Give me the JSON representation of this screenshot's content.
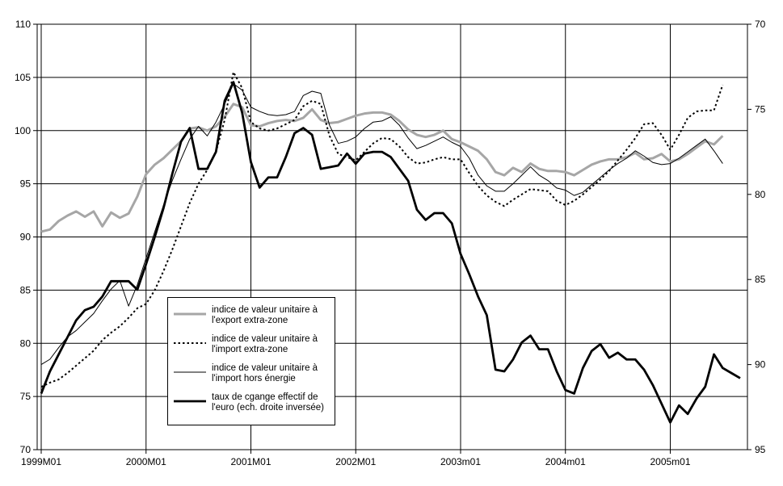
{
  "chart_data": {
    "type": "line",
    "title": "",
    "grid": true,
    "background": "#ffffff",
    "legend_position": "inside-left-bottom",
    "x_tick_labels": [
      "1999M01",
      "2000M01",
      "2001M01",
      "2002M01",
      "2003m01",
      "2004m01",
      "2005m01"
    ],
    "x_tick_indices": [
      0,
      12,
      24,
      36,
      48,
      60,
      72
    ],
    "x_categories": [
      "1999M01",
      "1999M02",
      "1999M03",
      "1999M04",
      "1999M05",
      "1999M06",
      "1999M07",
      "1999M08",
      "1999M09",
      "1999M10",
      "1999M11",
      "1999M12",
      "2000M01",
      "2000M02",
      "2000M03",
      "2000M04",
      "2000M05",
      "2000M06",
      "2000M07",
      "2000M08",
      "2000M09",
      "2000M10",
      "2000M11",
      "2000M12",
      "2001M01",
      "2001M02",
      "2001M03",
      "2001M04",
      "2001M05",
      "2001M06",
      "2001M07",
      "2001M08",
      "2001M09",
      "2001M10",
      "2001M11",
      "2001M12",
      "2002M01",
      "2002M02",
      "2002M03",
      "2002M04",
      "2002M05",
      "2002M06",
      "2002M07",
      "2002M08",
      "2002M09",
      "2002M10",
      "2002M11",
      "2002M12",
      "2003M01",
      "2003M02",
      "2003M03",
      "2003M04",
      "2003M05",
      "2003M06",
      "2003M07",
      "2003M08",
      "2003M09",
      "2003M10",
      "2003M11",
      "2003M12",
      "2004M01",
      "2004M02",
      "2004M03",
      "2004M04",
      "2004M05",
      "2004M06",
      "2004M07",
      "2004M08",
      "2004M09",
      "2004M10",
      "2004M11",
      "2004M12",
      "2005M01",
      "2005M02",
      "2005M03",
      "2005M04",
      "2005M05",
      "2005M06",
      "2005M07",
      "2005M08",
      "2005M09"
    ],
    "left_axis": {
      "min": 70,
      "max": 110,
      "step": 5,
      "ticks": [
        70,
        75,
        80,
        85,
        90,
        95,
        100,
        105,
        110
      ]
    },
    "right_axis": {
      "min": 70,
      "max": 95,
      "step": 5,
      "ticks": [
        70,
        75,
        80,
        85,
        90,
        95
      ],
      "inverted": true
    },
    "colors": {
      "gray_series": "#a6a6a6",
      "black_series": "#000000",
      "gridline": "#000000"
    },
    "series": [
      {
        "name": "indice de valeur unitaire à l'export extra-zone",
        "axis": "left",
        "style": "gray-thick",
        "color": "#a6a6a6",
        "values": [
          90.5,
          90.7,
          91.5,
          92.0,
          92.4,
          91.9,
          92.4,
          91.0,
          92.3,
          91.8,
          92.2,
          93.8,
          95.9,
          96.8,
          97.4,
          98.2,
          99.0,
          100.2,
          100.3,
          100.0,
          100.4,
          101.3,
          102.5,
          102.2,
          100.5,
          100.4,
          100.7,
          100.9,
          101.0,
          100.9,
          101.2,
          102.0,
          101.0,
          100.7,
          100.8,
          101.1,
          101.4,
          101.6,
          101.7,
          101.7,
          101.5,
          100.9,
          100.1,
          99.6,
          99.4,
          99.6,
          100.0,
          99.2,
          98.9,
          98.5,
          98.1,
          97.3,
          96.1,
          95.8,
          96.5,
          96.1,
          96.9,
          96.4,
          96.2,
          96.2,
          96.1,
          95.8,
          96.3,
          96.8,
          97.1,
          97.3,
          97.3,
          97.5,
          97.9,
          97.3,
          97.4,
          97.8,
          97.1,
          97.3,
          97.8,
          98.4,
          99.0,
          98.7,
          99.5,
          null,
          null
        ]
      },
      {
        "name": "indice de valeur unitaire à l'import extra-zone",
        "axis": "left",
        "style": "dotted",
        "color": "#000000",
        "values": [
          75.9,
          76.3,
          76.6,
          77.2,
          77.9,
          78.6,
          79.3,
          80.3,
          81.0,
          81.6,
          82.4,
          83.3,
          83.7,
          85.0,
          86.8,
          88.8,
          91.0,
          93.2,
          95.0,
          96.3,
          98.0,
          101.0,
          105.5,
          104.0,
          100.8,
          100.2,
          100.0,
          100.2,
          100.6,
          101.0,
          102.3,
          102.8,
          102.5,
          99.5,
          97.8,
          97.5,
          97.2,
          98.0,
          98.8,
          99.3,
          99.2,
          98.5,
          97.5,
          96.9,
          97.0,
          97.3,
          97.5,
          97.3,
          97.3,
          96.0,
          94.8,
          93.9,
          93.3,
          92.9,
          93.5,
          94.0,
          94.5,
          94.4,
          94.3,
          93.4,
          93.0,
          93.4,
          94.0,
          94.7,
          95.4,
          96.2,
          97.2,
          98.2,
          99.3,
          100.6,
          100.7,
          99.6,
          98.2,
          99.6,
          101.2,
          101.8,
          101.9,
          101.9,
          104.3,
          null,
          null
        ]
      },
      {
        "name": "indice de valeur unitaire à l'import hors énergie",
        "axis": "left",
        "style": "thin",
        "color": "#000000",
        "values": [
          78.0,
          78.5,
          79.6,
          80.6,
          81.2,
          82.0,
          82.8,
          84.0,
          85.1,
          85.9,
          83.5,
          85.5,
          88.0,
          90.5,
          93.0,
          95.3,
          97.3,
          99.2,
          100.4,
          99.5,
          100.8,
          102.5,
          104.4,
          103.8,
          102.2,
          101.8,
          101.5,
          101.4,
          101.5,
          101.8,
          103.3,
          103.7,
          103.5,
          100.5,
          98.8,
          99.0,
          99.4,
          100.2,
          100.8,
          100.9,
          101.3,
          100.5,
          99.3,
          98.3,
          98.6,
          99.0,
          99.4,
          98.9,
          98.5,
          97.4,
          95.8,
          94.8,
          94.3,
          94.3,
          95.0,
          95.8,
          96.6,
          95.8,
          95.3,
          94.6,
          94.4,
          93.9,
          94.2,
          94.9,
          95.6,
          96.3,
          96.9,
          97.4,
          98.1,
          97.6,
          97.0,
          96.8,
          96.9,
          97.4,
          98.0,
          98.6,
          99.2,
          98.1,
          96.9,
          null,
          null
        ]
      },
      {
        "name": "taux de cgange effectif de l'euro (ech. droite inversée)",
        "axis": "right",
        "style": "thick",
        "color": "#000000",
        "values": [
          91.7,
          90.4,
          89.4,
          88.4,
          87.4,
          86.8,
          86.6,
          86.0,
          85.1,
          85.1,
          85.1,
          85.6,
          84.1,
          82.5,
          80.8,
          78.8,
          76.9,
          76.1,
          78.5,
          78.5,
          77.5,
          74.5,
          73.4,
          75.2,
          78.1,
          79.6,
          79.0,
          79.0,
          77.8,
          76.4,
          76.1,
          76.5,
          78.5,
          78.4,
          78.3,
          77.6,
          78.2,
          77.6,
          77.5,
          77.5,
          77.8,
          78.5,
          79.2,
          80.9,
          81.5,
          81.1,
          81.1,
          81.7,
          83.5,
          84.7,
          86.0,
          87.1,
          90.3,
          90.4,
          89.7,
          88.7,
          88.3,
          89.1,
          89.1,
          90.4,
          91.5,
          91.7,
          90.2,
          89.2,
          88.8,
          89.6,
          89.3,
          89.7,
          89.7,
          90.3,
          91.2,
          92.3,
          93.4,
          92.4,
          92.9,
          92.0,
          91.3,
          89.4,
          90.2,
          90.5,
          90.8
        ]
      }
    ]
  }
}
